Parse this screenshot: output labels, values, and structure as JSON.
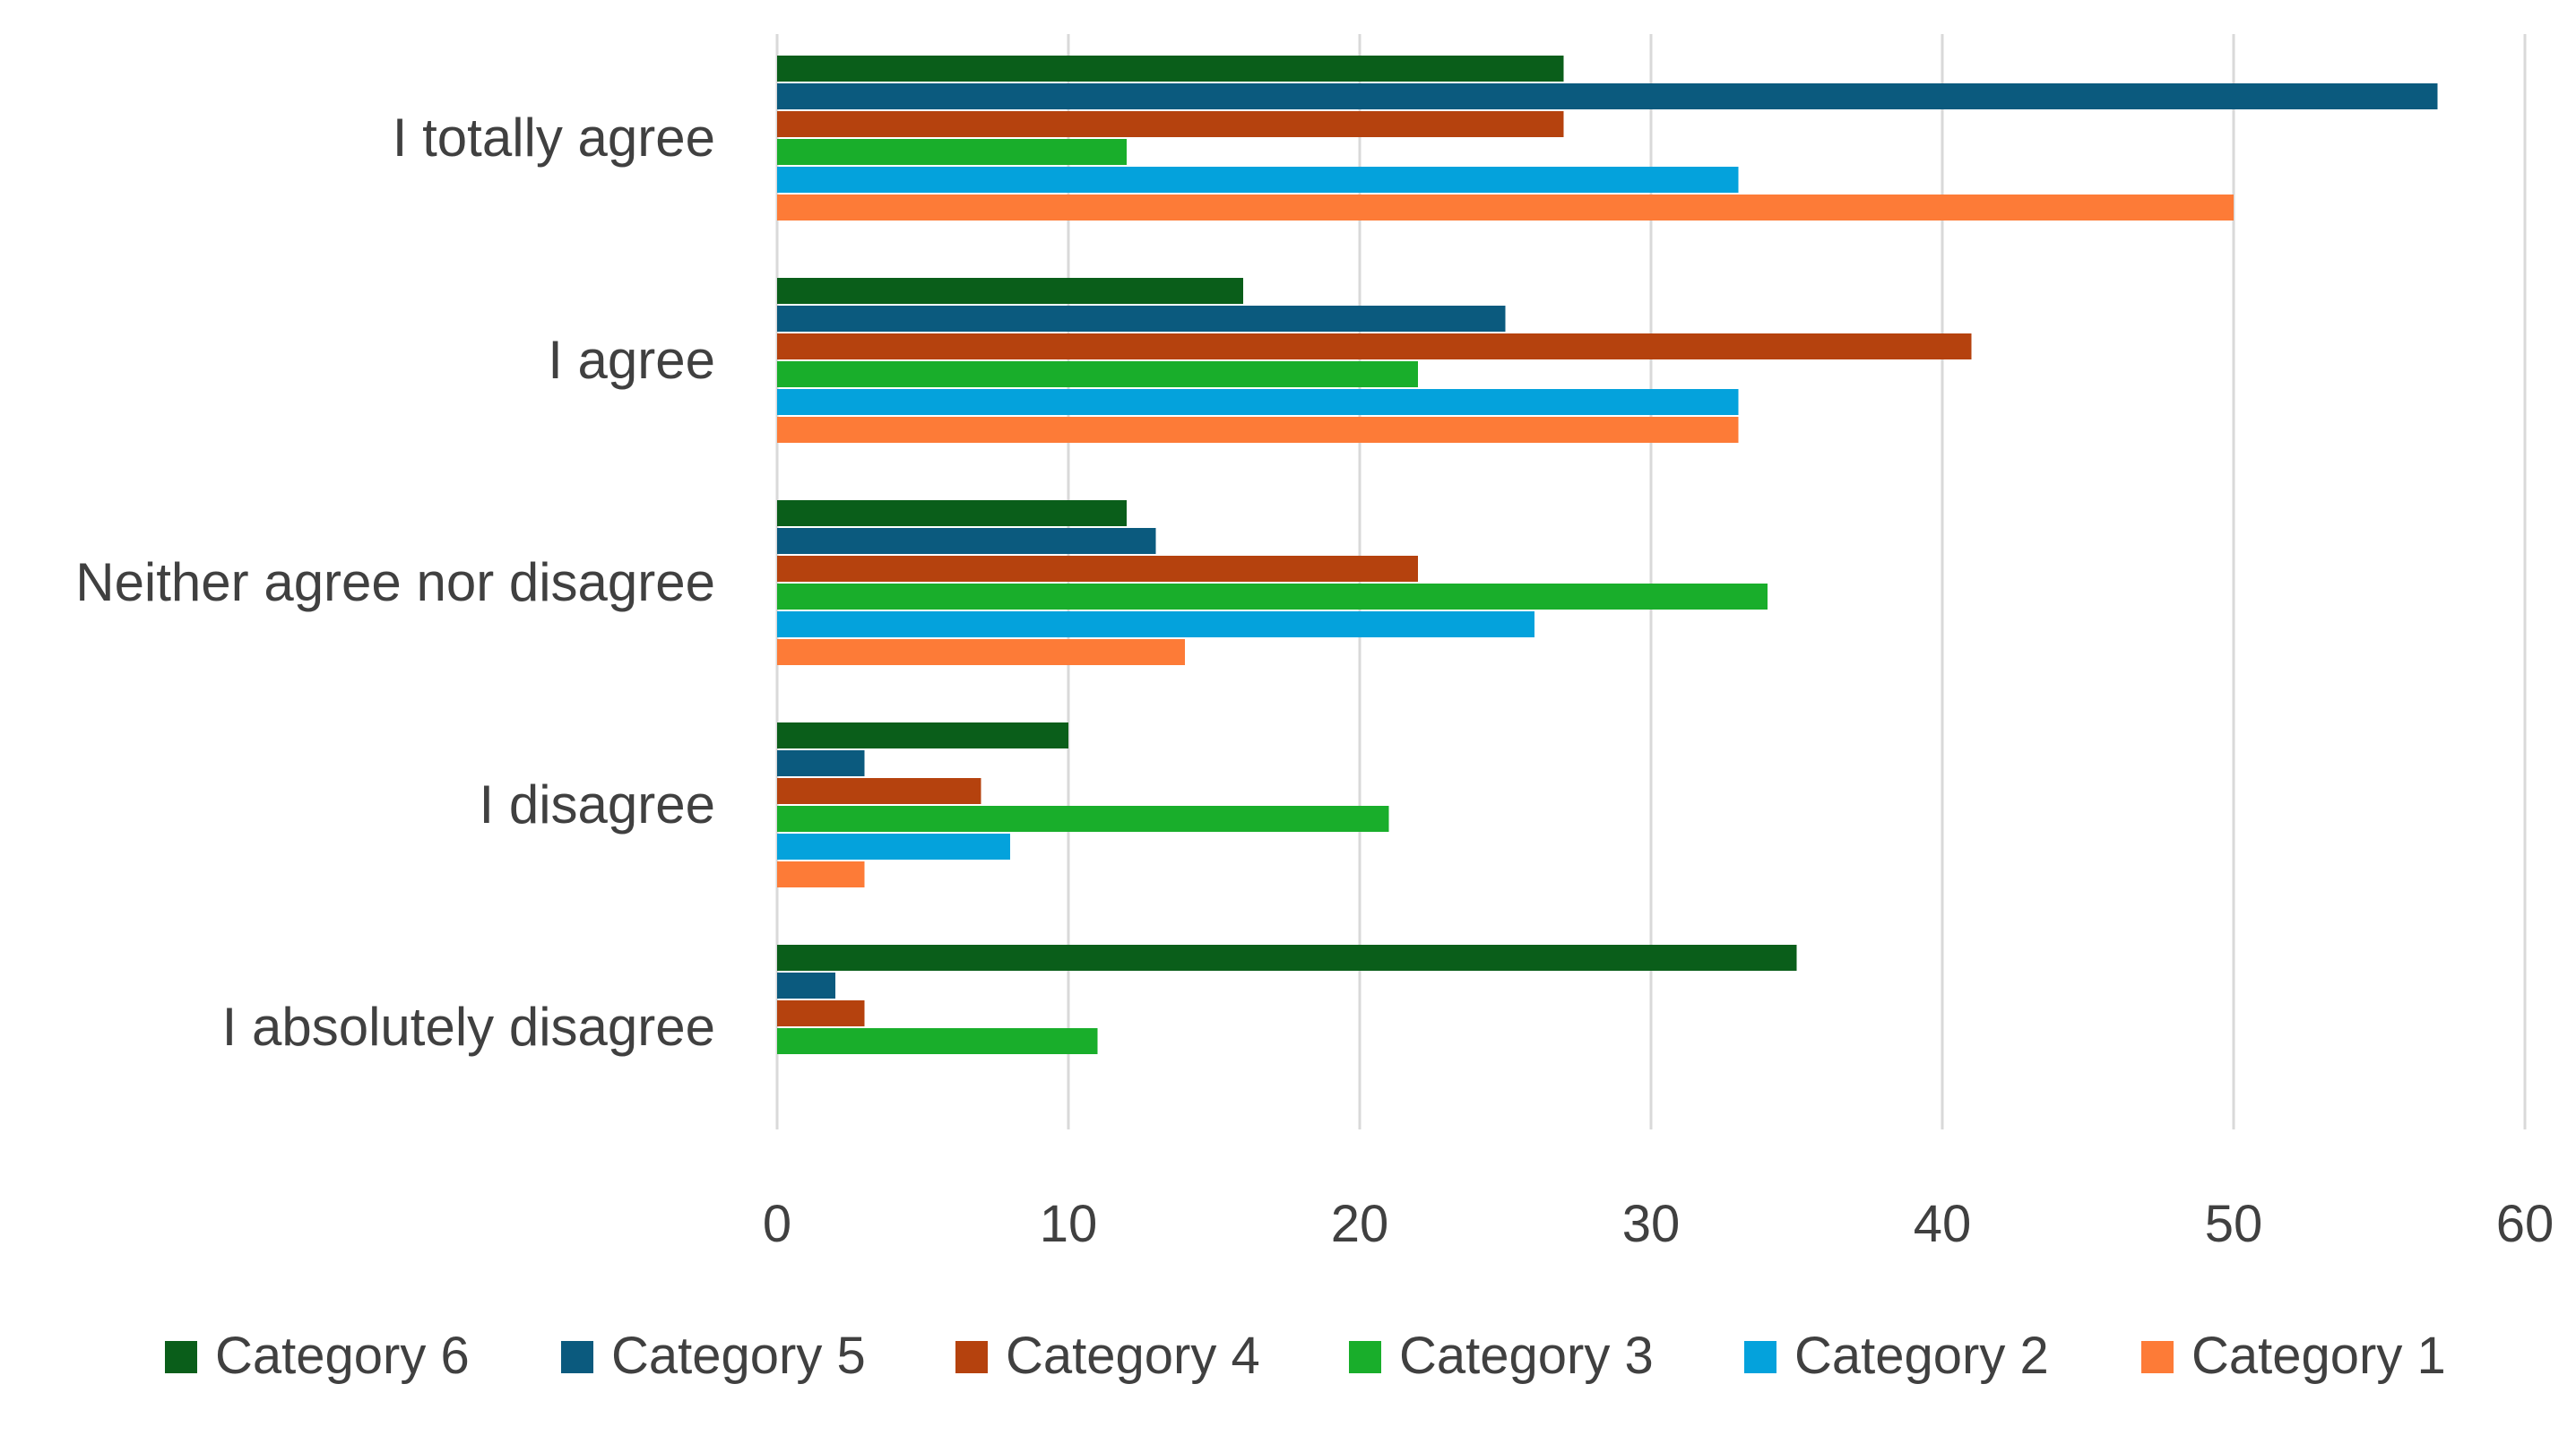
{
  "chart_data": {
    "type": "bar",
    "orientation": "horizontal",
    "title": "",
    "xlabel": "",
    "ylabel": "",
    "xlim": [
      0,
      60
    ],
    "x_ticks": [
      0,
      10,
      20,
      30,
      40,
      50,
      60
    ],
    "grid": "vertical",
    "legend_position": "bottom",
    "categories": [
      "I totally agree",
      "I agree",
      "Neither agree nor disagree",
      "I disagree",
      "I absolutely disagree"
    ],
    "series": [
      {
        "name": "Category 6",
        "color": "#0a5e1a",
        "values": [
          27,
          16,
          12,
          10,
          35
        ]
      },
      {
        "name": "Category 5",
        "color": "#0b5a7e",
        "values": [
          57,
          25,
          13,
          3,
          2
        ]
      },
      {
        "name": "Category 4",
        "color": "#b5420e",
        "values": [
          27,
          41,
          22,
          7,
          3
        ]
      },
      {
        "name": "Category 3",
        "color": "#19ae2b",
        "values": [
          12,
          22,
          34,
          21,
          11
        ]
      },
      {
        "name": "Category 2",
        "color": "#04a2dc",
        "values": [
          33,
          33,
          26,
          8,
          0
        ]
      },
      {
        "name": "Category 1",
        "color": "#fd7b37",
        "values": [
          50,
          33,
          14,
          3,
          0
        ]
      }
    ]
  }
}
